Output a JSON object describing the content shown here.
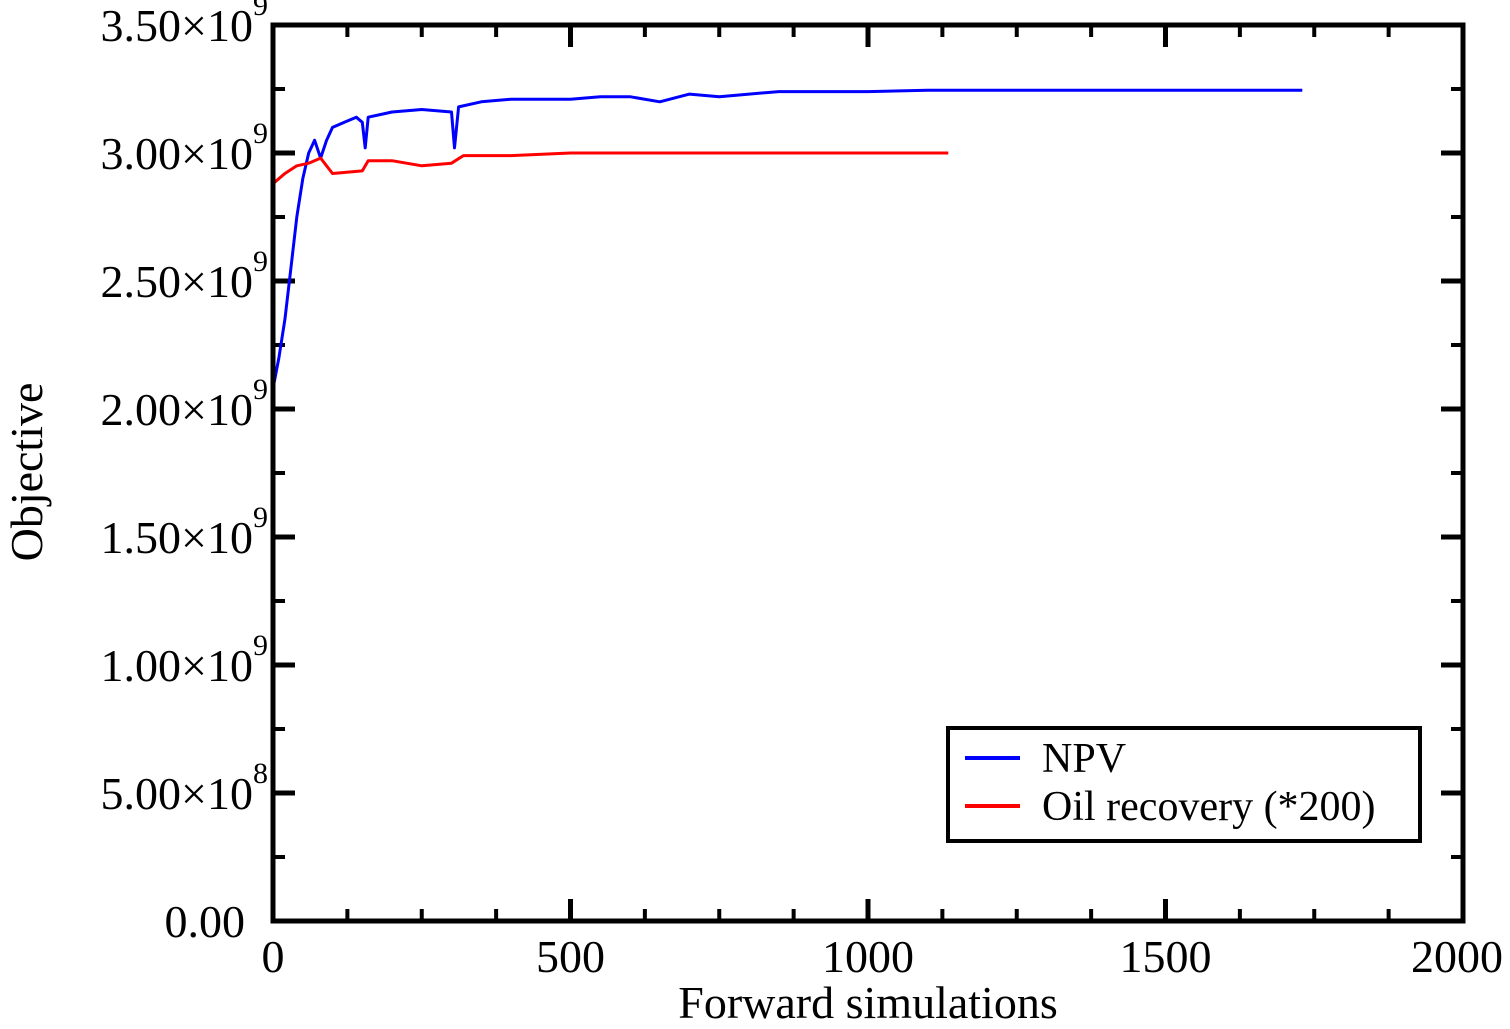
{
  "chart_data": {
    "type": "line",
    "title": "",
    "xlabel": "Forward simulations",
    "ylabel": "Objective",
    "xlim": [
      0,
      2000
    ],
    "ylim": [
      0,
      3500000000
    ],
    "grid": false,
    "legend_position": "bottom-right",
    "x_ticks": [
      {
        "value": 0,
        "label": "0"
      },
      {
        "value": 500,
        "label": "500"
      },
      {
        "value": 1000,
        "label": "1000"
      },
      {
        "value": 1500,
        "label": "1500"
      },
      {
        "value": 2000,
        "label": "2000"
      }
    ],
    "y_ticks": [
      {
        "value": 0,
        "mantissa": "0.00",
        "exp": ""
      },
      {
        "value": 500000000,
        "mantissa": "5.00×10",
        "exp": "8"
      },
      {
        "value": 1000000000,
        "mantissa": "1.00×10",
        "exp": "9"
      },
      {
        "value": 1500000000,
        "mantissa": "1.50×10",
        "exp": "9"
      },
      {
        "value": 2000000000,
        "mantissa": "2.00×10",
        "exp": "9"
      },
      {
        "value": 2500000000,
        "mantissa": "2.50×10",
        "exp": "9"
      },
      {
        "value": 3000000000,
        "mantissa": "3.00×10",
        "exp": "9"
      },
      {
        "value": 3500000000,
        "mantissa": "3.50×10",
        "exp": "9"
      }
    ],
    "series": [
      {
        "name": "NPV",
        "color": "#0000ff",
        "points": [
          [
            0,
            2080000000.0
          ],
          [
            10,
            2200000000.0
          ],
          [
            20,
            2350000000.0
          ],
          [
            30,
            2550000000.0
          ],
          [
            40,
            2750000000.0
          ],
          [
            50,
            2900000000.0
          ],
          [
            60,
            3000000000.0
          ],
          [
            70,
            3050000000.0
          ],
          [
            80,
            2980000000.0
          ],
          [
            90,
            3050000000.0
          ],
          [
            100,
            3100000000.0
          ],
          [
            120,
            3120000000.0
          ],
          [
            140,
            3140000000.0
          ],
          [
            150,
            3120000000.0
          ],
          [
            155,
            3020000000.0
          ],
          [
            160,
            3140000000.0
          ],
          [
            200,
            3160000000.0
          ],
          [
            250,
            3170000000.0
          ],
          [
            300,
            3160000000.0
          ],
          [
            305,
            3020000000.0
          ],
          [
            312,
            3180000000.0
          ],
          [
            350,
            3200000000.0
          ],
          [
            400,
            3210000000.0
          ],
          [
            450,
            3210000000.0
          ],
          [
            500,
            3210000000.0
          ],
          [
            550,
            3220000000.0
          ],
          [
            600,
            3220000000.0
          ],
          [
            650,
            3200000000.0
          ],
          [
            700,
            3230000000.0
          ],
          [
            750,
            3220000000.0
          ],
          [
            800,
            3230000000.0
          ],
          [
            850,
            3240000000.0
          ],
          [
            900,
            3240000000.0
          ],
          [
            950,
            3240000000.0
          ],
          [
            1000,
            3240000000.0
          ],
          [
            1100,
            3245000000.0
          ],
          [
            1200,
            3245000000.0
          ],
          [
            1300,
            3245000000.0
          ],
          [
            1400,
            3245000000.0
          ],
          [
            1500,
            3245000000.0
          ],
          [
            1600,
            3245000000.0
          ],
          [
            1700,
            3245000000.0
          ],
          [
            1730,
            3245000000.0
          ]
        ]
      },
      {
        "name": "Oil recovery (*200)",
        "color": "#ff0000",
        "points": [
          [
            0,
            2880000000.0
          ],
          [
            20,
            2920000000.0
          ],
          [
            40,
            2950000000.0
          ],
          [
            60,
            2960000000.0
          ],
          [
            80,
            2980000000.0
          ],
          [
            100,
            2920000000.0
          ],
          [
            150,
            2930000000.0
          ],
          [
            160,
            2970000000.0
          ],
          [
            200,
            2970000000.0
          ],
          [
            250,
            2950000000.0
          ],
          [
            300,
            2960000000.0
          ],
          [
            320,
            2990000000.0
          ],
          [
            400,
            2990000000.0
          ],
          [
            500,
            3000000000.0
          ],
          [
            600,
            3000000000.0
          ],
          [
            700,
            3000000000.0
          ],
          [
            800,
            3000000000.0
          ],
          [
            900,
            3000000000.0
          ],
          [
            1000,
            3000000000.0
          ],
          [
            1100,
            3000000000.0
          ],
          [
            1135,
            3000000000.0
          ]
        ]
      }
    ]
  }
}
